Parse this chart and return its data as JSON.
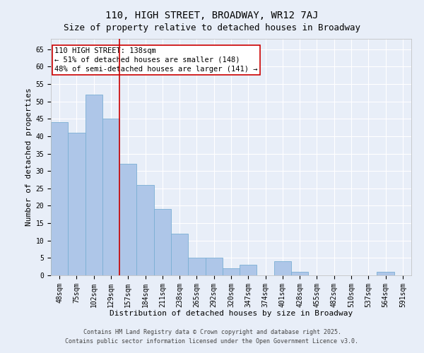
{
  "title": "110, HIGH STREET, BROADWAY, WR12 7AJ",
  "subtitle": "Size of property relative to detached houses in Broadway",
  "xlabel": "Distribution of detached houses by size in Broadway",
  "ylabel": "Number of detached properties",
  "categories": [
    "48sqm",
    "75sqm",
    "102sqm",
    "129sqm",
    "157sqm",
    "184sqm",
    "211sqm",
    "238sqm",
    "265sqm",
    "292sqm",
    "320sqm",
    "347sqm",
    "374sqm",
    "401sqm",
    "428sqm",
    "455sqm",
    "482sqm",
    "510sqm",
    "537sqm",
    "564sqm",
    "591sqm"
  ],
  "values": [
    44,
    41,
    52,
    45,
    32,
    26,
    19,
    12,
    5,
    5,
    2,
    3,
    0,
    4,
    1,
    0,
    0,
    0,
    0,
    1,
    0
  ],
  "bar_color": "#aec6e8",
  "bar_edge_color": "#7aafd4",
  "vline_x": 3.5,
  "vline_color": "#cc0000",
  "annotation_text": "110 HIGH STREET: 138sqm\n← 51% of detached houses are smaller (148)\n48% of semi-detached houses are larger (141) →",
  "annotation_box_color": "#ffffff",
  "annotation_box_edge": "#cc0000",
  "ylim": [
    0,
    68
  ],
  "yticks": [
    0,
    5,
    10,
    15,
    20,
    25,
    30,
    35,
    40,
    45,
    50,
    55,
    60,
    65
  ],
  "bg_color": "#e8eef8",
  "grid_color": "#ffffff",
  "footer1": "Contains HM Land Registry data © Crown copyright and database right 2025.",
  "footer2": "Contains public sector information licensed under the Open Government Licence v3.0.",
  "title_fontsize": 10,
  "subtitle_fontsize": 9,
  "axis_label_fontsize": 8,
  "tick_fontsize": 7,
  "annotation_fontsize": 7.5,
  "footer_fontsize": 6
}
